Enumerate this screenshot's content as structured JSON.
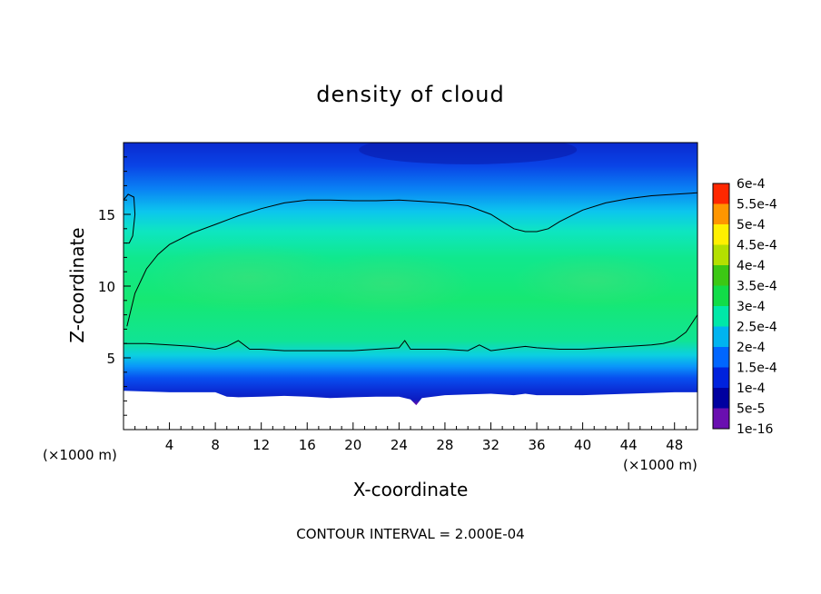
{
  "chart_data": {
    "type": "heatmap",
    "title": "density of cloud",
    "xlabel": "X-coordinate",
    "ylabel": "Z-coordinate",
    "x_unit_left": "(×1000 m)",
    "x_unit_right": "(×1000 m)",
    "xlim": [
      0,
      50
    ],
    "ylim": [
      0,
      20
    ],
    "x_ticks": [
      4,
      8,
      12,
      16,
      20,
      24,
      28,
      32,
      36,
      40,
      44,
      48
    ],
    "x_tick_labels": [
      "4",
      "8",
      "12",
      "16",
      "20",
      "24",
      "28",
      "32",
      "36",
      "40",
      "44",
      "48"
    ],
    "y_ticks": [
      5,
      10,
      15
    ],
    "y_tick_labels": [
      "5",
      "10",
      "15"
    ],
    "footer": "CONTOUR INTERVAL = 2.000E-04",
    "colorbar": {
      "levels": [
        "1e-16",
        "5e-5",
        "1e-4",
        "1.5e-4",
        "2e-4",
        "2.5e-4",
        "3e-4",
        "3.5e-4",
        "4e-4",
        "4.5e-4",
        "5e-4",
        "5.5e-4",
        "6e-4"
      ],
      "colors": [
        "#6a0fb0",
        "#0000a0",
        "#0022dd",
        "#0066ff",
        "#00b4f0",
        "#00e8a8",
        "#12dc48",
        "#3cc814",
        "#b4e000",
        "#fff000",
        "#ff9600",
        "#ff2800",
        "#ff8c8c"
      ]
    },
    "field_bands": [
      {
        "level": "1e-16",
        "z_bottom_range": [
          2.4,
          3.0
        ],
        "z_top": 3.0
      },
      {
        "level": "5e-5",
        "z_range": [
          3.0,
          3.8
        ]
      },
      {
        "level": "1e-4",
        "z_range": [
          3.8,
          4.6
        ]
      },
      {
        "level": "1.5e-4",
        "z_range": [
          4.6,
          5.4
        ]
      },
      {
        "level": "2e-4",
        "z_range": [
          5.4,
          6.2
        ]
      },
      {
        "level": "2.5e-4",
        "z_range": [
          6.2,
          14.5
        ]
      },
      {
        "level": "1e-4",
        "z_range": [
          17.5,
          20
        ]
      }
    ],
    "contour_lines": [
      {
        "level": "2e-4",
        "name": "upper",
        "x": [
          0.3,
          1,
          2,
          3,
          4,
          6,
          8,
          10,
          12,
          14,
          16,
          18,
          20,
          22,
          24,
          26,
          28,
          30,
          32,
          33,
          34,
          35,
          36,
          37,
          38,
          40,
          42,
          44,
          46,
          48,
          50
        ],
        "z": [
          7.2,
          9.5,
          11.2,
          12.2,
          12.9,
          13.7,
          14.3,
          14.9,
          15.4,
          15.8,
          16.0,
          16.0,
          15.95,
          15.95,
          16.0,
          15.9,
          15.8,
          15.6,
          15.0,
          14.5,
          14.0,
          13.8,
          13.8,
          14.0,
          14.5,
          15.3,
          15.8,
          16.1,
          16.3,
          16.4,
          16.5
        ]
      },
      {
        "level": "2e-4",
        "name": "lower",
        "x": [
          0,
          2,
          4,
          6,
          8,
          9,
          10,
          11,
          12,
          14,
          16,
          18,
          20,
          22,
          24,
          24.5,
          25,
          26,
          28,
          30,
          31,
          32,
          34,
          35,
          36,
          38,
          40,
          42,
          44,
          46,
          47,
          48,
          49,
          50
        ],
        "z": [
          6.0,
          6.0,
          5.9,
          5.8,
          5.6,
          5.8,
          6.2,
          5.6,
          5.6,
          5.5,
          5.5,
          5.5,
          5.5,
          5.6,
          5.7,
          6.2,
          5.6,
          5.6,
          5.6,
          5.5,
          5.9,
          5.5,
          5.7,
          5.8,
          5.7,
          5.6,
          5.6,
          5.7,
          5.8,
          5.9,
          6.0,
          6.2,
          6.8,
          8.0
        ]
      },
      {
        "level": "2e-4",
        "name": "left-edge",
        "x": [
          0,
          0.4,
          0.9,
          1.0,
          0.8,
          0.5,
          0.2
        ],
        "z": [
          16.0,
          16.4,
          16.2,
          15.0,
          13.5,
          13.0,
          13.0
        ]
      }
    ]
  }
}
